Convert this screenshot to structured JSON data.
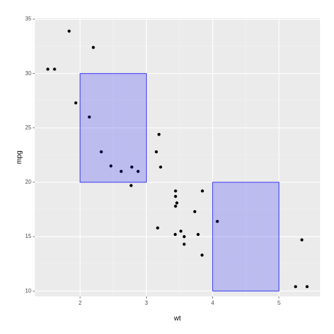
{
  "chart_data": {
    "type": "scatter",
    "x_label": "wt",
    "y_label": "mpg",
    "x": [
      2.62,
      2.875,
      2.32,
      3.215,
      3.44,
      3.46,
      3.57,
      3.19,
      3.15,
      3.44,
      3.44,
      4.07,
      3.73,
      3.78,
      5.25,
      5.424,
      5.345,
      2.2,
      1.615,
      1.835,
      2.465,
      3.52,
      3.435,
      3.84,
      3.845,
      1.935,
      2.14,
      1.513,
      3.17,
      2.77,
      3.57,
      2.78
    ],
    "y": [
      21.0,
      21.0,
      22.8,
      21.4,
      18.7,
      18.1,
      14.3,
      24.4,
      22.8,
      19.2,
      17.8,
      16.4,
      17.3,
      15.2,
      10.4,
      10.4,
      14.7,
      32.4,
      30.4,
      33.9,
      21.5,
      15.5,
      15.2,
      13.3,
      19.2,
      27.3,
      26.0,
      30.4,
      15.8,
      19.7,
      15.0,
      21.4
    ],
    "color": "#000000",
    "rects": [
      {
        "xmin": 2,
        "xmax": 3,
        "ymin": 20,
        "ymax": 30
      },
      {
        "xmin": 4,
        "xmax": 5,
        "ymin": 10,
        "ymax": 20
      }
    ],
    "rect_fill": "#0000ff",
    "rect_stroke": "#3333ee",
    "xlim": [
      1.317,
      5.62
    ],
    "ylim": [
      9.5,
      35.1
    ],
    "xticks": [
      2,
      3,
      4,
      5
    ],
    "yticks": [
      10,
      15,
      20,
      25,
      30,
      35
    ],
    "grid": true
  }
}
